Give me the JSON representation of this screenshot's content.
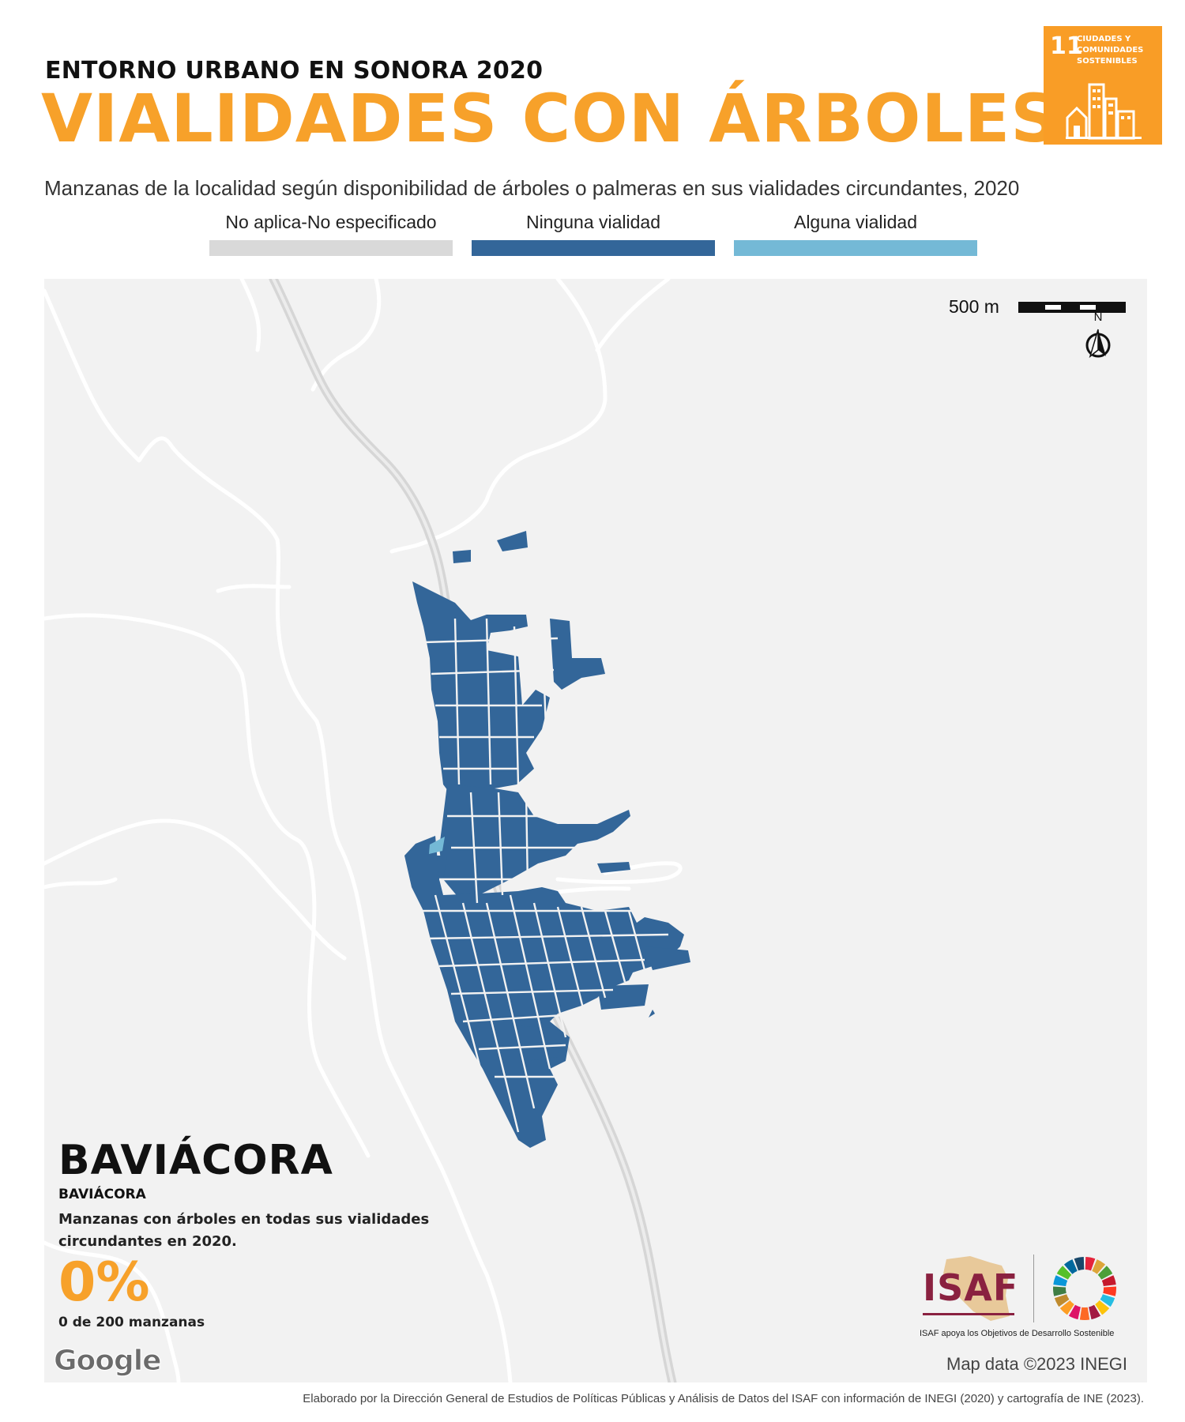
{
  "header": {
    "kicker": "ENTORNO URBANO EN SONORA 2020",
    "title": "VIALIDADES CON ÁRBOLES",
    "subtitle": "Manzanas de la localidad según disponibilidad de árboles o palmeras en sus vialidades circundantes, 2020"
  },
  "sdg_badge": {
    "number": "11",
    "text": "CIUDADES Y COMUNIDADES SOSTENIBLES",
    "color": "#f99d26"
  },
  "legend": [
    {
      "label": "No aplica-No especificado",
      "color": "#d9d9d9"
    },
    {
      "label": "Ninguna vialidad",
      "color": "#336699"
    },
    {
      "label": "Alguna vialidad",
      "color": "#74b9d6"
    }
  ],
  "map": {
    "scale_label": "500 m",
    "north_label": "N",
    "attribution": "Map data ©2023 INEGI",
    "google_label": "Google",
    "block_color": "#336699",
    "highlight_color": "#74b9d6",
    "road_color": "#d4d4d4",
    "background_color": "#f2f2f2"
  },
  "locality": {
    "name": "BAVIÁCORA",
    "municipality": "BAVIÁCORA",
    "description": "Manzanas con árboles en todas sus vialidades circundantes en 2020.",
    "percentage": "0%",
    "count": "0 de 200 manzanas"
  },
  "logos": {
    "isaf_label": "ISAF",
    "caption": "ISAF apoya los Objetivos de Desarrollo Sostenible",
    "sdg_wheel_colors": [
      "#e5243b",
      "#dda63a",
      "#4c9f38",
      "#c5192d",
      "#ff3a21",
      "#26bde2",
      "#fcc30b",
      "#a21942",
      "#fd6925",
      "#dd1367",
      "#fd9d24",
      "#bf8b2e",
      "#3f7e44",
      "#0a97d9",
      "#56c02b",
      "#00689d",
      "#19486a"
    ]
  },
  "footer": "Elaborado por la Dirección General de Estudios de Políticas Públicas y Análisis de Datos del ISAF con información de INEGI (2020) y cartografía de INE (2023)."
}
